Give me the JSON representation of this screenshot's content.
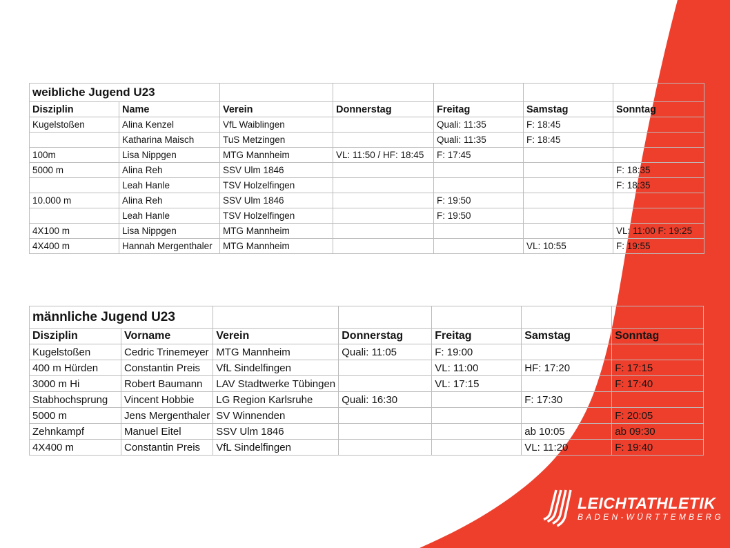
{
  "page": {
    "accent_red": "#ee3f2d",
    "logo_white": "#ffffff",
    "grid_line_gray": "#bcbcbc"
  },
  "tables": [
    {
      "title": "weibliche Jugend U23",
      "columns": [
        "Disziplin",
        "Name",
        "Verein",
        "Donnerstag",
        "Freitag",
        "Samstag",
        "Sonntag"
      ],
      "rows": [
        [
          "Kugelstoßen",
          "Alina Kenzel",
          "VfL Waiblingen",
          "",
          "Quali: 11:35",
          "F: 18:45",
          ""
        ],
        [
          "",
          "Katharina Maisch",
          "TuS Metzingen",
          "",
          "Quali: 11:35",
          "F: 18:45",
          ""
        ],
        [
          "100m",
          "Lisa Nippgen",
          "MTG Mannheim",
          "VL: 11:50 / HF: 18:45",
          "F: 17:45",
          "",
          ""
        ],
        [
          "5000 m",
          "Alina Reh",
          "SSV Ulm 1846",
          "",
          "",
          "",
          "F: 18:35"
        ],
        [
          "",
          "Leah Hanle",
          "TSV Holzelfingen",
          "",
          "",
          "",
          "F: 18:35"
        ],
        [
          "10.000 m",
          "Alina Reh",
          "SSV Ulm 1846",
          "",
          "F: 19:50",
          "",
          ""
        ],
        [
          "",
          "Leah Hanle",
          "TSV Holzelfingen",
          "",
          "F: 19:50",
          "",
          ""
        ],
        [
          "4X100 m",
          "Lisa Nippgen",
          "MTG Mannheim",
          "",
          "",
          "",
          "VL: 11:00 F: 19:25"
        ],
        [
          "4X400 m",
          "Hannah Mergenthaler",
          "MTG Mannheim",
          "",
          "",
          "VL: 10:55",
          "F: 19:55"
        ]
      ]
    },
    {
      "title": "männliche Jugend U23",
      "columns": [
        "Disziplin",
        "Vorname",
        "Verein",
        "Donnerstag",
        "Freitag",
        "Samstag",
        "Sonntag"
      ],
      "rows": [
        [
          "Kugelstoßen",
          "Cedric Trinemeyer",
          "MTG Mannheim",
          "Quali: 11:05",
          "F: 19:00",
          "",
          ""
        ],
        [
          "400 m Hürden",
          "Constantin Preis",
          "VfL Sindelfingen",
          "",
          "VL: 11:00",
          "HF: 17:20",
          "F: 17:15"
        ],
        [
          "3000 m Hi",
          "Robert Baumann",
          "LAV Stadtwerke Tübingen",
          "",
          "VL: 17:15",
          "",
          "F: 17:40"
        ],
        [
          "Stabhochsprung",
          "Vincent Hobbie",
          "LG Region Karlsruhe",
          "Quali: 16:30",
          "",
          "F: 17:30",
          ""
        ],
        [
          "5000 m",
          "Jens Mergenthaler",
          "SV Winnenden",
          "",
          "",
          "",
          "F: 20:05"
        ],
        [
          "Zehnkampf",
          "Manuel Eitel",
          "SSV Ulm 1846",
          "",
          "",
          "ab 10:05",
          "ab 09:30"
        ],
        [
          "4X400 m",
          "Constantin Preis",
          "VfL Sindelfingen",
          "",
          "",
          "VL: 11:20",
          "F: 19:40"
        ]
      ]
    }
  ],
  "logo": {
    "line1": "LEICHTATHLETIK",
    "line2": "BADEN-WÜRTTEMBERG"
  }
}
